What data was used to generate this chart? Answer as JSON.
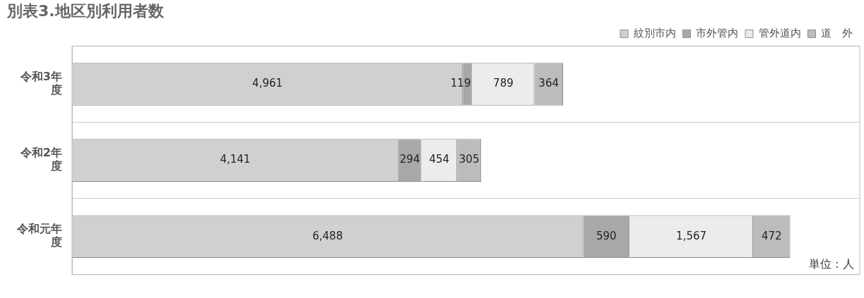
{
  "chart_data": {
    "type": "bar",
    "orientation": "horizontal",
    "stacked": true,
    "title": "別表3.地区別利用者数",
    "categories": [
      "令和3年度",
      "令和2年度",
      "令和元年度"
    ],
    "series": [
      {
        "name": "紋別市内",
        "color": "#d0d0d0",
        "values": [
          4961,
          4141,
          6488
        ],
        "value_labels": [
          "4,961",
          "4,141",
          "6,488"
        ]
      },
      {
        "name": "市外管内",
        "color": "#a8a8a8",
        "values": [
          119,
          294,
          590
        ],
        "value_labels": [
          "119",
          "294",
          "590"
        ]
      },
      {
        "name": "管外道内",
        "color": "#ececec",
        "values": [
          789,
          454,
          1567
        ],
        "value_labels": [
          "789",
          "454",
          "1,567"
        ]
      },
      {
        "name": "道　外",
        "color": "#bcbcbc",
        "values": [
          364,
          305,
          472
        ],
        "value_labels": [
          "364",
          "305",
          "472"
        ]
      }
    ],
    "grid": "y",
    "legend": "top right",
    "annotations": [
      "単位：人"
    ]
  }
}
